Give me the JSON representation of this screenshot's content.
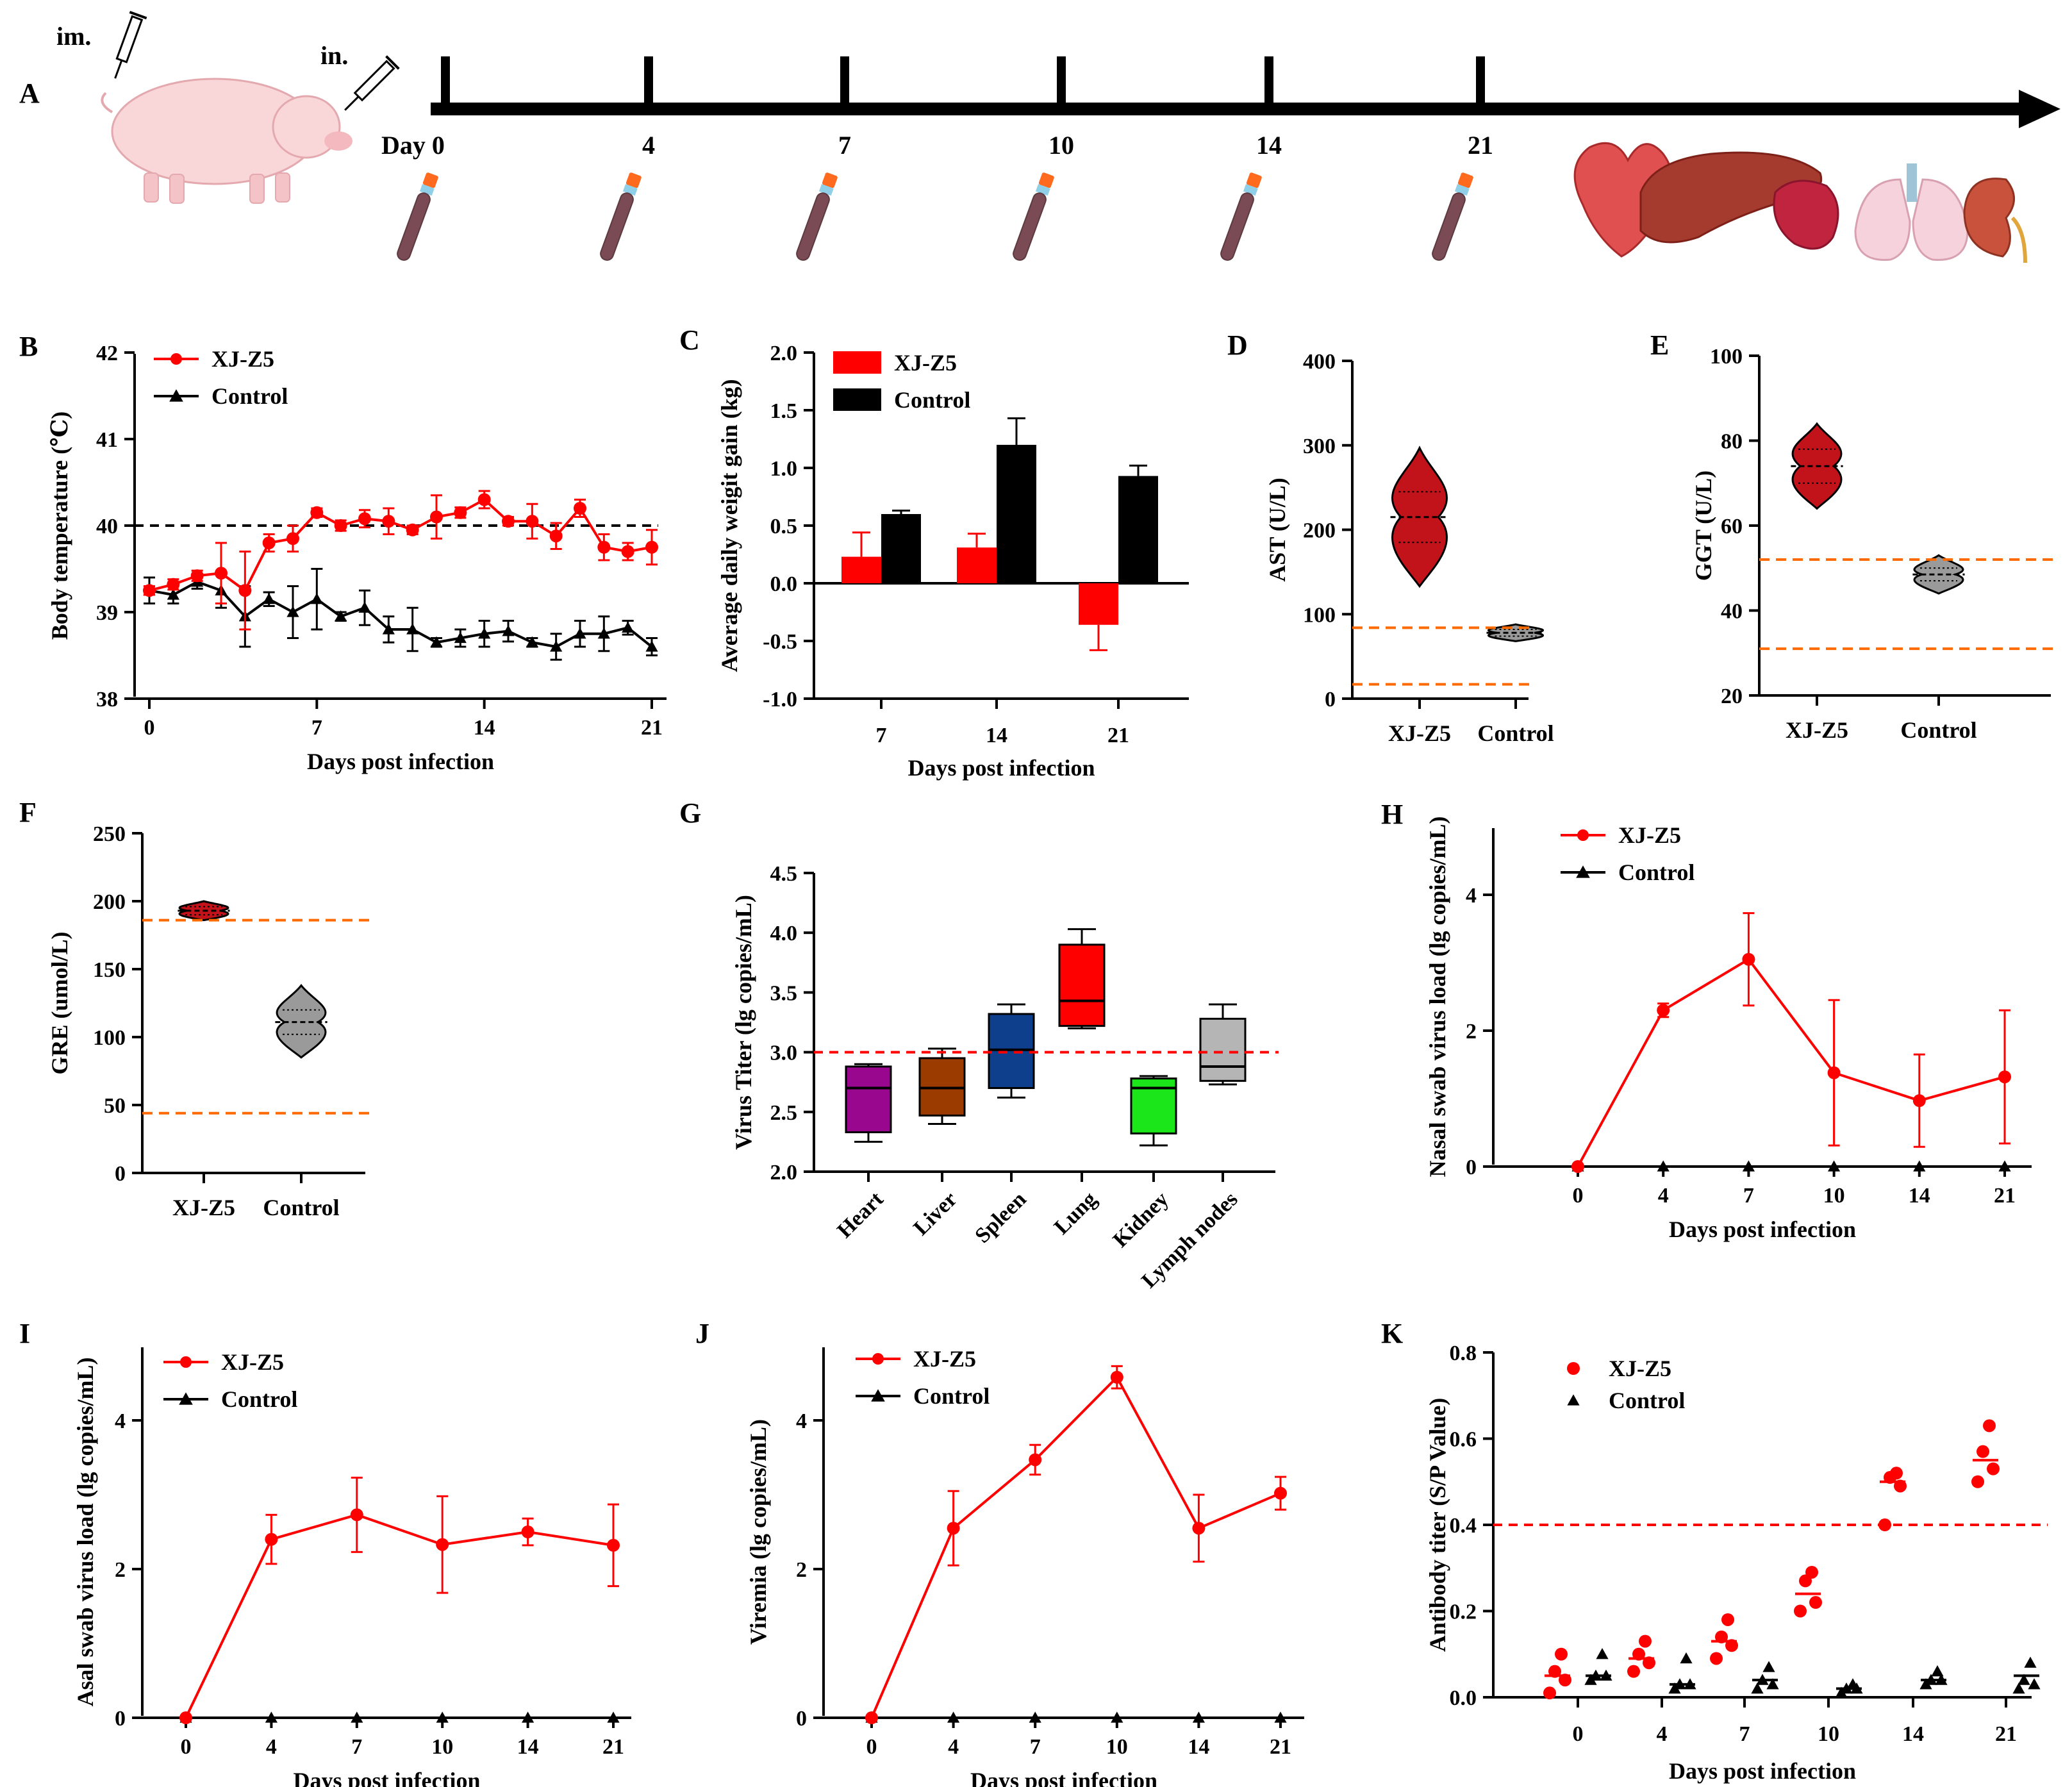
{
  "figure": {
    "panel_letters": [
      "A",
      "B",
      "C",
      "D",
      "E",
      "F",
      "G",
      "H",
      "I",
      "J",
      "K"
    ],
    "colors": {
      "infected": "#ff0000",
      "control": "#000000",
      "reference_line": "#ff6a00",
      "dark_red": "#b20000"
    },
    "timeline": {
      "route_labels": [
        "im.",
        "in."
      ],
      "day_prefix": "Day",
      "days": [
        "0",
        "4",
        "7",
        "10",
        "14",
        "21"
      ],
      "organs": [
        "heart-icon",
        "liver-icon",
        "spleen-icon",
        "lung-icon",
        "kidney-icon"
      ]
    }
  },
  "chart_data": [
    {
      "id": "B",
      "type": "line",
      "ylabel": "Body temperature (℃)",
      "xlabel": "Days post infection",
      "ylim": [
        38,
        42
      ],
      "yticks": [
        "38",
        "39",
        "40",
        "41",
        "42"
      ],
      "xlim": [
        0,
        21
      ],
      "xticks": [
        "0",
        "7",
        "14",
        "21"
      ],
      "reference_line": 40,
      "x": [
        0,
        1,
        2,
        3,
        4,
        5,
        6,
        7,
        8,
        9,
        10,
        11,
        12,
        13,
        14,
        15,
        16,
        17,
        18,
        19,
        20,
        21
      ],
      "series": [
        {
          "name": "XJ-Z5",
          "marker": "circle",
          "values": [
            39.25,
            39.32,
            39.42,
            39.45,
            39.25,
            39.8,
            39.85,
            40.15,
            40.0,
            40.08,
            40.05,
            39.95,
            40.1,
            40.15,
            40.3,
            40.05,
            40.05,
            39.88,
            40.2,
            39.75,
            39.7,
            39.75
          ],
          "errors": [
            0.05,
            0.06,
            0.06,
            0.35,
            0.45,
            0.1,
            0.15,
            0.05,
            0.06,
            0.1,
            0.15,
            0.05,
            0.25,
            0.06,
            0.1,
            0.05,
            0.2,
            0.15,
            0.1,
            0.15,
            0.1,
            0.2
          ]
        },
        {
          "name": "Control",
          "marker": "triangle",
          "values": [
            39.25,
            39.2,
            39.35,
            39.25,
            38.95,
            39.15,
            39.0,
            39.15,
            38.95,
            39.05,
            38.8,
            38.8,
            38.65,
            38.7,
            38.75,
            38.78,
            38.65,
            38.6,
            38.75,
            38.75,
            38.82,
            38.6
          ],
          "errors": [
            0.15,
            0.1,
            0.08,
            0.2,
            0.35,
            0.08,
            0.3,
            0.35,
            0.05,
            0.2,
            0.15,
            0.25,
            0.05,
            0.1,
            0.15,
            0.12,
            0.05,
            0.15,
            0.15,
            0.2,
            0.08,
            0.1
          ]
        }
      ]
    },
    {
      "id": "C",
      "type": "bar",
      "ylabel": "Average daily weigit gain (kg)",
      "xlabel": "Days post infection",
      "ylim": [
        -1.0,
        2.0
      ],
      "yticks": [
        "-1.0",
        "-0.5",
        "0.0",
        "0.5",
        "1.0",
        "1.5",
        "2.0"
      ],
      "categories": [
        "7",
        "14",
        "21"
      ],
      "series": [
        {
          "name": "XJ-Z5",
          "values": [
            0.23,
            0.31,
            -0.36
          ],
          "errors": [
            0.21,
            0.12,
            0.22
          ]
        },
        {
          "name": "Control",
          "values": [
            0.6,
            1.2,
            0.93
          ],
          "errors": [
            0.03,
            0.23,
            0.09
          ]
        }
      ]
    },
    {
      "id": "D",
      "type": "violin",
      "ylabel": "AST (U/L)",
      "ylim": [
        0,
        400
      ],
      "yticks": [
        "0",
        "100",
        "200",
        "300",
        "400"
      ],
      "categories": [
        "XJ-Z5",
        "Control"
      ],
      "reference_lines": [
        84,
        17
      ],
      "groups": [
        {
          "name": "XJ-Z5",
          "min": 133,
          "max": 297,
          "median": 215,
          "q1": 185,
          "q3": 245
        },
        {
          "name": "Control",
          "min": 68,
          "max": 88,
          "median": 78,
          "q1": 74,
          "q3": 82
        }
      ]
    },
    {
      "id": "E",
      "type": "violin",
      "ylabel": "GGT (U/L)",
      "ylim": [
        20,
        100
      ],
      "yticks": [
        "20",
        "40",
        "60",
        "80",
        "100"
      ],
      "categories": [
        "XJ-Z5",
        "Control"
      ],
      "reference_lines": [
        52,
        31
      ],
      "groups": [
        {
          "name": "XJ-Z5",
          "min": 64,
          "max": 84,
          "median": 74,
          "q1": 70,
          "q3": 78
        },
        {
          "name": "Control",
          "min": 44,
          "max": 53,
          "median": 48.5,
          "q1": 47,
          "q3": 50
        }
      ]
    },
    {
      "id": "F",
      "type": "violin",
      "ylabel": "GRE (umol/L)",
      "ylim": [
        0,
        250
      ],
      "yticks": [
        "0",
        "50",
        "100",
        "150",
        "200",
        "250"
      ],
      "categories": [
        "XJ-Z5",
        "Control"
      ],
      "reference_lines": [
        186,
        44
      ],
      "groups": [
        {
          "name": "XJ-Z5",
          "min": 186,
          "max": 200,
          "median": 193,
          "q1": 190,
          "q3": 196
        },
        {
          "name": "Control",
          "min": 85,
          "max": 138,
          "median": 111,
          "q1": 102,
          "q3": 120
        }
      ]
    },
    {
      "id": "G",
      "type": "box",
      "ylabel": "Virus Titer (lg copies/mL)",
      "ylim": [
        2.0,
        4.5
      ],
      "yticks": [
        "2.0",
        "2.5",
        "3.0",
        "3.5",
        "4.0",
        "4.5"
      ],
      "categories": [
        "Heart",
        "Liver",
        "Spleen",
        "Lung",
        "Kidney",
        "Lymph nodes"
      ],
      "reference_line": 3.0,
      "boxes": [
        {
          "name": "Heart",
          "color": "#99078f",
          "min": 2.25,
          "q1": 2.33,
          "median": 2.7,
          "q3": 2.88,
          "max": 2.9
        },
        {
          "name": "Liver",
          "color": "#9b3b00",
          "min": 2.4,
          "q1": 2.47,
          "median": 2.7,
          "q3": 2.95,
          "max": 3.03
        },
        {
          "name": "Spleen",
          "color": "#0e3f8c",
          "min": 2.62,
          "q1": 2.7,
          "median": 3.02,
          "q3": 3.32,
          "max": 3.4
        },
        {
          "name": "Lung",
          "color": "#ff0000",
          "min": 3.2,
          "q1": 3.22,
          "median": 3.43,
          "q3": 3.9,
          "max": 4.03
        },
        {
          "name": "Kidney",
          "color": "#1ae61a",
          "min": 2.22,
          "q1": 2.32,
          "median": 2.7,
          "q3": 2.78,
          "max": 2.8
        },
        {
          "name": "Lymph nodes",
          "color": "#b5b5b5",
          "min": 2.73,
          "q1": 2.76,
          "median": 2.88,
          "q3": 3.28,
          "max": 3.4
        }
      ]
    },
    {
      "id": "H",
      "type": "line",
      "ylabel": "Nasal swab virus load (lg copies/mL)",
      "xlabel": "Days post infection",
      "ylim": [
        0,
        5
      ],
      "yticks": [
        "0",
        "2",
        "4"
      ],
      "x": [
        0,
        4,
        7,
        10,
        14,
        21
      ],
      "xticks": [
        "0",
        "4",
        "7",
        "10",
        "14",
        "21"
      ],
      "series": [
        {
          "name": "XJ-Z5",
          "marker": "circle",
          "values": [
            0,
            2.3,
            3.05,
            1.38,
            0.97,
            1.32
          ],
          "errors": [
            0,
            0.1,
            0.68,
            1.07,
            0.68,
            0.98
          ]
        },
        {
          "name": "Control",
          "marker": "triangle",
          "values": [
            0,
            0,
            0,
            0,
            0,
            0
          ],
          "errors": [
            0,
            0,
            0,
            0,
            0,
            0
          ]
        }
      ]
    },
    {
      "id": "I",
      "type": "line",
      "ylabel": "Asal swab virus load (lg copies/mL)",
      "xlabel": "Days post infection",
      "ylim": [
        0,
        5
      ],
      "yticks": [
        "0",
        "2",
        "4"
      ],
      "x": [
        0,
        4,
        7,
        10,
        14,
        21
      ],
      "xticks": [
        "0",
        "4",
        "7",
        "10",
        "14",
        "21"
      ],
      "series": [
        {
          "name": "XJ-Z5",
          "marker": "circle",
          "values": [
            0,
            2.4,
            2.73,
            2.33,
            2.5,
            2.32
          ],
          "errors": [
            0,
            0.33,
            0.5,
            0.65,
            0.18,
            0.55
          ]
        },
        {
          "name": "Control",
          "marker": "triangle",
          "values": [
            0,
            0,
            0,
            0,
            0,
            0
          ],
          "errors": [
            0,
            0,
            0,
            0,
            0,
            0
          ]
        }
      ]
    },
    {
      "id": "J",
      "type": "line",
      "ylabel": "Viremia (lg copies/mL)",
      "xlabel": "Days post infection",
      "ylim": [
        0,
        5
      ],
      "yticks": [
        "0",
        "2",
        "4"
      ],
      "x": [
        0,
        4,
        7,
        10,
        14,
        21
      ],
      "xticks": [
        "0",
        "4",
        "7",
        "10",
        "14",
        "21"
      ],
      "series": [
        {
          "name": "XJ-Z5",
          "marker": "circle",
          "values": [
            0,
            2.55,
            3.47,
            4.58,
            2.55,
            3.02
          ],
          "errors": [
            0,
            0.5,
            0.2,
            0.15,
            0.45,
            0.22
          ]
        },
        {
          "name": "Control",
          "marker": "triangle",
          "values": [
            0,
            0,
            0,
            0,
            0,
            0
          ],
          "errors": [
            0,
            0,
            0,
            0,
            0,
            0
          ]
        }
      ]
    },
    {
      "id": "K",
      "type": "scatter",
      "ylabel": "Antibody titer (S/P Value)",
      "xlabel": "Days post infection",
      "ylim": [
        0,
        0.8
      ],
      "yticks": [
        "0.0",
        "0.2",
        "0.4",
        "0.6",
        "0.8"
      ],
      "categories": [
        "0",
        "4",
        "7",
        "10",
        "14",
        "21"
      ],
      "reference_line": 0.4,
      "series": [
        {
          "name": "XJ-Z5",
          "marker": "circle",
          "points": [
            [
              0.01,
              0.04,
              0.06,
              0.1
            ],
            [
              0.06,
              0.08,
              0.1,
              0.13
            ],
            [
              0.09,
              0.12,
              0.14,
              0.18
            ],
            [
              0.2,
              0.22,
              0.27,
              0.29
            ],
            [
              0.4,
              0.49,
              0.51,
              0.52
            ],
            [
              0.5,
              0.53,
              0.57,
              0.63
            ]
          ],
          "means": [
            0.05,
            0.09,
            0.13,
            0.24,
            0.5,
            0.55
          ]
        },
        {
          "name": "Control",
          "marker": "triangle",
          "points": [
            [
              0.04,
              0.05,
              0.05,
              0.1
            ],
            [
              0.02,
              0.03,
              0.03,
              0.09
            ],
            [
              0.02,
              0.03,
              0.04,
              0.07
            ],
            [
              0.01,
              0.02,
              0.02,
              0.03
            ],
            [
              0.03,
              0.04,
              0.04,
              0.06
            ],
            [
              0.02,
              0.03,
              0.04,
              0.08
            ]
          ],
          "means": [
            0.05,
            0.03,
            0.04,
            0.02,
            0.04,
            0.05
          ]
        }
      ]
    }
  ]
}
